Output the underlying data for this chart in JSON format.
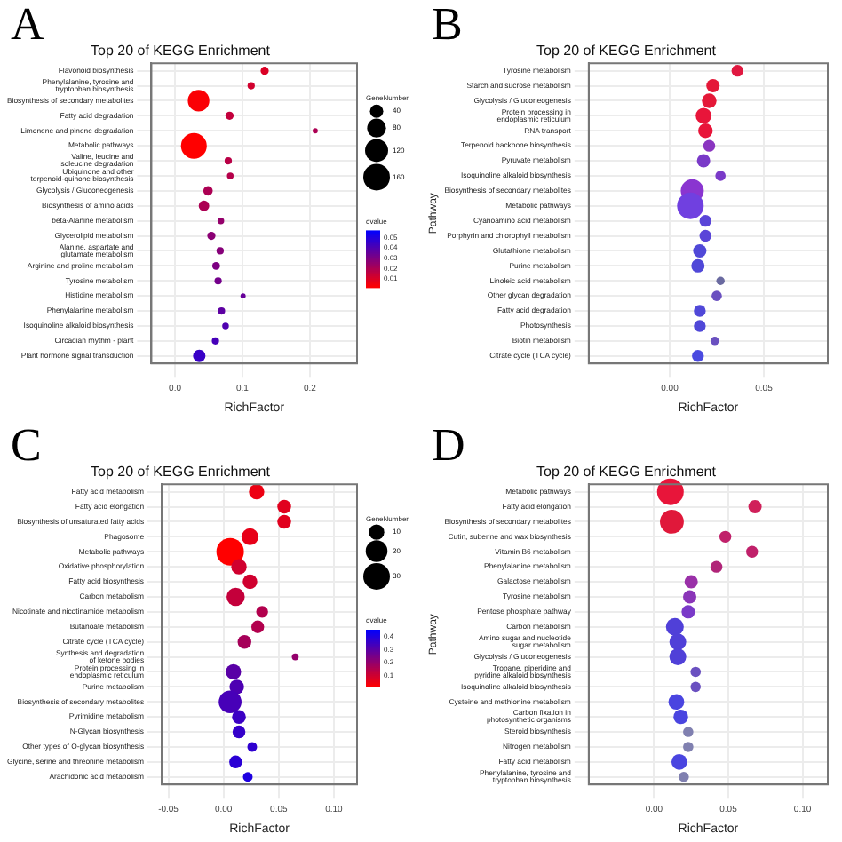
{
  "chart_data": [
    {
      "type": "bubble",
      "orientation": "horizontal",
      "annotations": [
        "A"
      ],
      "title": "Top 20 of KEGG Enrichment",
      "xlabel": "RichFactor",
      "grid": true,
      "legend_title": "GeneNumber",
      "size_legend": [
        40,
        80,
        120,
        160
      ],
      "clabel": "qvalue",
      "clim": [
        0.002,
        0.057
      ],
      "cticks": [
        {
          "value": 0.01,
          "label": "0.01"
        },
        {
          "value": 0.02,
          "label": "0.02"
        },
        {
          "value": 0.03,
          "label": "0.03"
        },
        {
          "value": 0.04,
          "label": "0.04"
        },
        {
          "value": 0.05,
          "label": "0.05"
        }
      ],
      "xlim": [
        -0.035,
        0.27
      ],
      "xticks": [
        {
          "value": 0,
          "label": "0.0"
        },
        0.1,
        0.2
      ],
      "categories": [
        "Flavonoid biosynthesis",
        "Phenylalanine, tyrosine and tryptophan biosynthesis",
        "Biosynthesis of secondary metabolites",
        "Fatty acid degradation",
        "Limonene and pinene degradation",
        "Metabolic pathways",
        "Valine, leucine and isoleucine degradation",
        "Ubiquinone and other terpenoid-quinone biosynthesis",
        "Glycolysis / Gluconeogenesis",
        "Biosynthesis of amino acids",
        "beta-Alanine metabolism",
        "Glycerolipid metabolism",
        "Alanine, aspartate and glutamate metabolism",
        "Arginine and proline metabolism",
        "Tyrosine metabolism",
        "Histidine metabolism",
        "Phenylalanine metabolism",
        "Isoquinoline alkaloid biosynthesis",
        "Circadian rhythm - plant",
        "Plant hormone signal transduction"
      ],
      "values": [
        0.133,
        0.113,
        0.035,
        0.081,
        0.208,
        0.028,
        0.079,
        0.082,
        0.049,
        0.043,
        0.068,
        0.054,
        0.067,
        0.061,
        0.064,
        0.101,
        0.069,
        0.075,
        0.06,
        0.036
      ],
      "sizes": [
        15,
        12,
        105,
        15,
        6,
        150,
        12,
        10,
        20,
        25,
        10,
        15,
        12,
        14,
        12,
        6,
        12,
        10,
        12,
        35
      ],
      "cvalues": [
        0.01,
        0.012,
        0.003,
        0.015,
        0.02,
        0.002,
        0.017,
        0.018,
        0.02,
        0.02,
        0.025,
        0.027,
        0.028,
        0.03,
        0.032,
        0.035,
        0.037,
        0.04,
        0.042,
        0.045
      ]
    },
    {
      "type": "bubble",
      "orientation": "horizontal",
      "annotations": [
        "B"
      ],
      "title": "Top 20 of KEGG Enrichment",
      "xlabel": "RichFactor",
      "ylabel": "Pathway",
      "grid": true,
      "xlim": [
        -0.043,
        0.084
      ],
      "xticks": [
        {
          "value": 0,
          "label": "0.00"
        },
        {
          "value": 0.05,
          "label": "0.05"
        }
      ],
      "categories": [
        "Tyrosine metabolism",
        "Starch and sucrose metabolism",
        "Glycolysis / Gluconeogenesis",
        "Protein processing in endoplasmic reticulum",
        "RNA transport",
        "Terpenoid backbone biosynthesis",
        "Pyruvate metabolism",
        "Isoquinoline alkaloid biosynthesis",
        "Biosynthesis of secondary metabolites",
        "Metabolic pathways",
        "Cyanoamino acid metabolism",
        "Porphyrin and chlorophyll metabolism",
        "Glutathione metabolism",
        "Purine metabolism",
        "Linoleic acid metabolism",
        "Other glycan degradation",
        "Fatty acid degradation",
        "Photosynthesis",
        "Biotin metabolism",
        "Citrate cycle (TCA cycle)"
      ],
      "values": [
        0.036,
        0.023,
        0.021,
        0.018,
        0.019,
        0.021,
        0.018,
        0.027,
        0.012,
        0.011,
        0.019,
        0.019,
        0.016,
        0.015,
        0.027,
        0.025,
        0.016,
        0.016,
        0.024,
        0.015
      ],
      "sizes": [
        0.2,
        0.25,
        0.3,
        0.35,
        0.3,
        0.2,
        0.25,
        0.15,
        0.75,
        1,
        0.2,
        0.2,
        0.25,
        0.25,
        0.1,
        0.15,
        0.2,
        0.2,
        0.1,
        0.2
      ],
      "colors": [
        "#e01840",
        "#e41838",
        "#e41838",
        "#e8153a",
        "#e8153a",
        "#8a35c0",
        "#7a3ac8",
        "#7a3ac8",
        "#8a35d0",
        "#7040e0",
        "#5a45d8",
        "#5a45d8",
        "#5048d8",
        "#5048d8",
        "#6a6aa0",
        "#6a50c0",
        "#5048d8",
        "#5048d8",
        "#6a50c0",
        "#4a4ae0"
      ]
    },
    {
      "type": "bubble",
      "orientation": "horizontal",
      "annotations": [
        "C"
      ],
      "title": "Top 20 of KEGG Enrichment",
      "xlabel": "RichFactor",
      "grid": true,
      "legend_title": "GeneNumber",
      "size_legend": [
        10,
        20,
        30
      ],
      "clabel": "qvalue",
      "clim": [
        0.02,
        0.45
      ],
      "cticks": [
        0.1,
        0.2,
        0.3,
        0.4
      ],
      "xlim": [
        -0.056,
        0.121
      ],
      "xticks": [
        {
          "value": -0.05,
          "label": "-0.05"
        },
        {
          "value": 0,
          "label": "0.00"
        },
        {
          "value": 0.05,
          "label": "0.05"
        },
        {
          "value": 0.1,
          "label": "0.10"
        }
      ],
      "categories": [
        "Fatty acid metabolism",
        "Fatty acid elongation",
        "Biosynthesis of unsaturated fatty acids",
        "Phagosome",
        "Metabolic pathways",
        "Oxidative phosphorylation",
        "Fatty acid biosynthesis",
        "Carbon metabolism",
        "Nicotinate and nicotinamide metabolism",
        "Butanoate metabolism",
        "Citrate cycle (TCA cycle)",
        "Synthesis and degradation of ketone bodies",
        "Protein processing in endoplasmic reticulum",
        "Purine metabolism",
        "Biosynthesis of secondary metabolites",
        "Pyrimidine metabolism",
        "N-Glycan biosynthesis",
        "Other types of O-glycan biosynthesis",
        "Glycine, serine and threonine metabolism",
        "Arachidonic acid metabolism"
      ],
      "values": [
        0.03,
        0.055,
        0.055,
        0.024,
        0.006,
        0.014,
        0.024,
        0.011,
        0.035,
        0.031,
        0.019,
        0.065,
        0.009,
        0.012,
        0.006,
        0.014,
        0.014,
        0.026,
        0.011,
        0.022
      ],
      "sizes": [
        10,
        8,
        8,
        12,
        32,
        10,
        9,
        14,
        6,
        7,
        8,
        2,
        10,
        9,
        22,
        8,
        7,
        4,
        7,
        4
      ],
      "cvalues": [
        0.05,
        0.07,
        0.07,
        0.06,
        0.02,
        0.1,
        0.1,
        0.12,
        0.15,
        0.15,
        0.17,
        0.2,
        0.3,
        0.32,
        0.33,
        0.35,
        0.36,
        0.37,
        0.38,
        0.4
      ]
    },
    {
      "type": "bubble",
      "orientation": "horizontal",
      "annotations": [
        "D"
      ],
      "title": "Top 20 of KEGG Enrichment",
      "xlabel": "RichFactor",
      "ylabel": "Pathway",
      "grid": true,
      "xlim": [
        -0.044,
        0.117
      ],
      "xticks": [
        {
          "value": 0,
          "label": "0.00"
        },
        {
          "value": 0.05,
          "label": "0.05"
        },
        {
          "value": 0.1,
          "label": "0.10"
        }
      ],
      "categories": [
        "Metabolic pathways",
        "Fatty acid elongation",
        "Biosynthesis of secondary metabolites",
        "Cutin, suberine and wax biosynthesis",
        "Vitamin B6 metabolism",
        "Phenylalanine metabolism",
        "Galactose metabolism",
        "Tyrosine metabolism",
        "Pentose phosphate pathway",
        "Carbon metabolism",
        "Amino sugar and nucleotide sugar metabolism",
        "Glycolysis / Gluconeogenesis",
        "Tropane, piperidine and pyridine alkaloid biosynthesis",
        "Isoquinoline alkaloid biosynthesis",
        "Cysteine and methionine metabolism",
        "Carbon fixation in photosynthetic organisms",
        "Steroid biosynthesis",
        "Nitrogen metabolism",
        "Fatty acid metabolism",
        "Phenylalanine, tyrosine and tryptophan biosynthesis"
      ],
      "values": [
        0.011,
        0.068,
        0.012,
        0.048,
        0.066,
        0.042,
        0.025,
        0.024,
        0.023,
        0.014,
        0.016,
        0.016,
        0.028,
        0.028,
        0.015,
        0.018,
        0.023,
        0.023,
        0.017,
        0.02
      ],
      "sizes": [
        1,
        0.25,
        0.8,
        0.2,
        0.2,
        0.2,
        0.25,
        0.25,
        0.25,
        0.45,
        0.4,
        0.4,
        0.15,
        0.15,
        0.35,
        0.3,
        0.15,
        0.15,
        0.35,
        0.15
      ],
      "colors": [
        "#e8153a",
        "#d0205a",
        "#e0183a",
        "#c0206a",
        "#c0206a",
        "#b02478",
        "#9a30a8",
        "#8a35b8",
        "#7a3ac8",
        "#5040d8",
        "#5040d8",
        "#5040d8",
        "#6a50c0",
        "#6a50c0",
        "#4a45e0",
        "#4a45e0",
        "#8080b0",
        "#8080b0",
        "#4a45e0",
        "#8080b0"
      ]
    }
  ]
}
